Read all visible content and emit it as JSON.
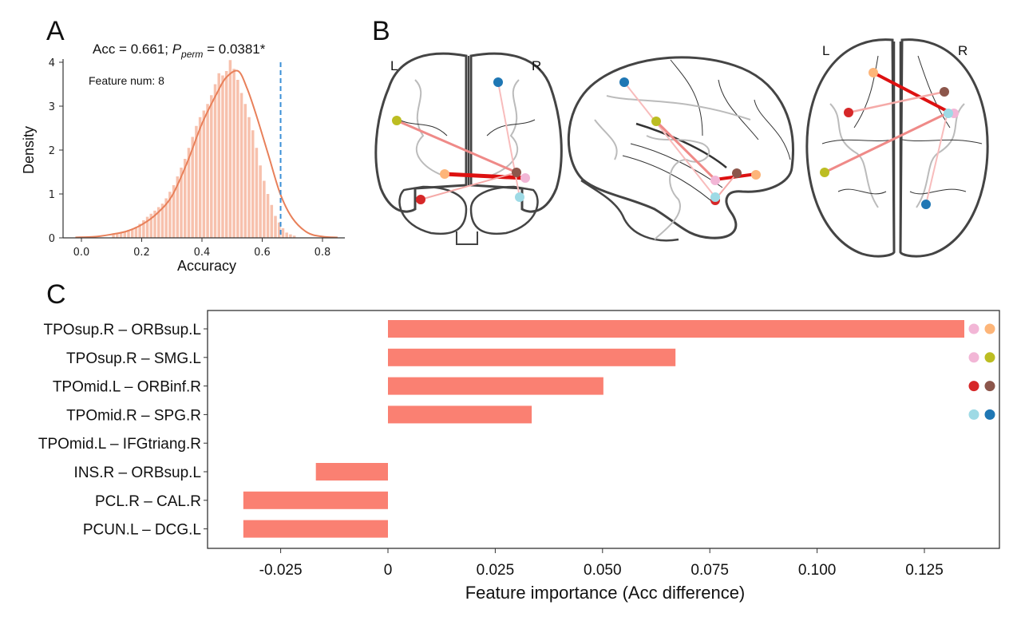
{
  "panels": {
    "A": "A",
    "B": "B",
    "C": "C"
  },
  "chart_data": [
    {
      "type": "bar",
      "subtype": "histogram_with_kde",
      "panel": "A",
      "title_prefix": "Acc = 0.661; ",
      "title_p": "P",
      "title_p_sub": "perm",
      "title_suffix": " = 0.0381*",
      "annotation": "Feature num: 8",
      "xlabel": "Accuracy",
      "ylabel": "Density",
      "xlim": [
        -0.04,
        0.86
      ],
      "ylim": [
        0,
        4.1
      ],
      "xticks": [
        "0.0",
        "0.2",
        "0.4",
        "0.6",
        "0.8"
      ],
      "xtick_values": [
        0.0,
        0.2,
        0.4,
        0.6,
        0.8
      ],
      "yticks": [
        "0",
        "1",
        "2",
        "3",
        "4"
      ],
      "ytick_values": [
        0,
        1,
        2,
        3,
        4
      ],
      "observed_accuracy": 0.661,
      "colors": {
        "hist": "#f7c1ad",
        "kde": "#e8805a",
        "observed_line": "#3a8fd6"
      },
      "kde": {
        "x": [
          -0.02,
          0.05,
          0.1,
          0.15,
          0.2,
          0.25,
          0.3,
          0.35,
          0.4,
          0.45,
          0.48,
          0.52,
          0.55,
          0.58,
          0.62,
          0.66,
          0.7,
          0.75,
          0.8,
          0.85
        ],
        "y": [
          0.01,
          0.03,
          0.08,
          0.15,
          0.3,
          0.55,
          0.95,
          1.7,
          2.6,
          3.3,
          3.65,
          3.8,
          3.4,
          2.8,
          1.9,
          1.0,
          0.45,
          0.12,
          0.03,
          0.01
        ]
      },
      "histogram": {
        "bin_width": 0.0125,
        "bins_start": 0.1,
        "densities": [
          0.08,
          0.1,
          0.12,
          0.15,
          0.18,
          0.2,
          0.25,
          0.32,
          0.4,
          0.48,
          0.55,
          0.62,
          0.7,
          0.78,
          0.9,
          1.05,
          1.2,
          1.4,
          1.6,
          1.8,
          2.05,
          2.3,
          2.55,
          2.75,
          2.9,
          3.05,
          3.25,
          3.5,
          3.75,
          3.7,
          3.8,
          4.05,
          3.85,
          3.6,
          3.3,
          3.05,
          2.75,
          2.45,
          2.05,
          1.65,
          1.3,
          1.0,
          0.75,
          0.5,
          0.35,
          0.22,
          0.12,
          0.08,
          0.05
        ]
      }
    },
    {
      "type": "bar",
      "orientation": "horizontal",
      "panel": "C",
      "xlabel": "Feature importance (Acc difference)",
      "ylabel": "",
      "xlim": [
        -0.042,
        0.142
      ],
      "xticks": [
        "-0.025",
        "0",
        "0.025",
        "0.050",
        "0.075",
        "0.100",
        "0.125"
      ],
      "xtick_values": [
        -0.025,
        0,
        0.025,
        0.05,
        0.075,
        0.1,
        0.125
      ],
      "bar_color": "#fa8072",
      "categories": [
        "TPOsup.R – ORBsup.L",
        "TPOsup.R – SMG.L",
        "TPOmid.L – ORBinf.R",
        "TPOmid.R – SPG.R",
        "TPOmid.L – IFGtriang.R",
        "INS.R – ORBsup.L",
        "PCL.R – CAL.R",
        "PCUN.L – DCG.L"
      ],
      "values": [
        0.1343,
        0.067,
        0.0502,
        0.0335,
        0.0,
        -0.0168,
        -0.0337,
        -0.0337
      ],
      "markers": [
        [
          "#f2b6d6",
          "#fdb579"
        ],
        [
          "#f2b6d6",
          "#bcbd22"
        ],
        [
          "#d62728",
          "#8c564b"
        ],
        [
          "#9edae5",
          "#1f77b4"
        ],
        [],
        [],
        [],
        []
      ]
    }
  ],
  "brain": {
    "side_labels": {
      "left": "L",
      "right": "R"
    },
    "node_colors": {
      "ORBsup.L": "#fdb579",
      "TPOsup.R": "#f2b6d6",
      "SMG.L": "#bcbd22",
      "TPOmid.L": "#d62728",
      "ORBinf.R": "#8c564b",
      "TPOmid.R": "#9edae5",
      "SPG.R": "#1f77b4"
    },
    "edges": [
      {
        "from": "TPOsup.R",
        "to": "ORBsup.L",
        "color": "#dd1111",
        "strength": "strong"
      },
      {
        "from": "TPOsup.R",
        "to": "SMG.L",
        "color": "#ef8a88",
        "strength": "medium"
      },
      {
        "from": "TPOmid.L",
        "to": "ORBinf.R",
        "color": "#f5aaa8",
        "strength": "weak"
      },
      {
        "from": "TPOmid.R",
        "to": "SPG.R",
        "color": "#f8bcbc",
        "strength": "weak"
      }
    ]
  }
}
